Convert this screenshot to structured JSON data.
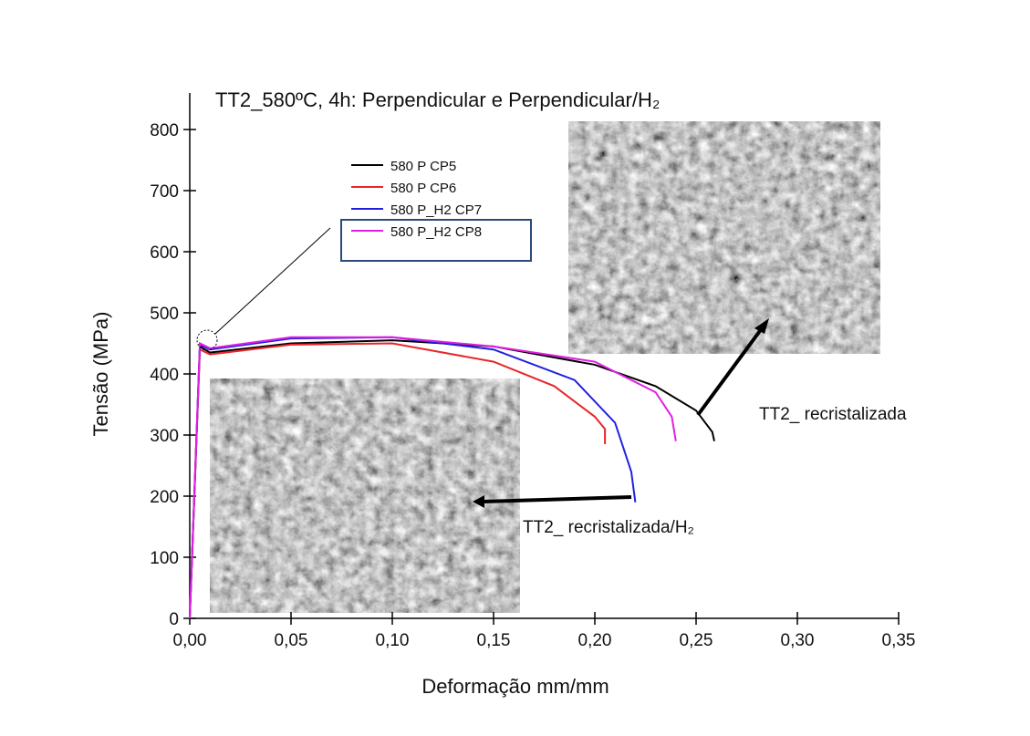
{
  "chart_data": {
    "type": "line",
    "title": "TT2_580ºC, 4h: Perpendicular e Perpendicular/H₂",
    "x_label": "Deformação mm/mm",
    "y_label": "Tensão (MPa)",
    "xlim": [
      0,
      0.35
    ],
    "xticks": [
      {
        "value": 0,
        "label": "0,00"
      },
      {
        "value": 0.05,
        "label": "0,05"
      },
      {
        "value": 0.1,
        "label": "0,10"
      },
      {
        "value": 0.15,
        "label": "0,15"
      },
      {
        "value": 0.2,
        "label": "0,20"
      },
      {
        "value": 0.25,
        "label": "0,25"
      },
      {
        "value": 0.3,
        "label": "0,30"
      },
      {
        "value": 0.35,
        "label": "0,35"
      }
    ],
    "ylim": [
      0,
      800
    ],
    "yticks": [
      0,
      100,
      200,
      300,
      400,
      500,
      600,
      700,
      800
    ],
    "series": [
      {
        "name": "580 P CP5",
        "color": "#000000",
        "x": [
          0,
          0.005,
          0.01,
          0.05,
          0.1,
          0.15,
          0.2,
          0.23,
          0.25,
          0.258,
          0.259
        ],
        "values": [
          0,
          445,
          435,
          450,
          455,
          445,
          415,
          380,
          340,
          305,
          290
        ]
      },
      {
        "name": "580 P CP6",
        "color": "#e8262a",
        "x": [
          0,
          0.005,
          0.01,
          0.05,
          0.1,
          0.15,
          0.18,
          0.2,
          0.205,
          0.205
        ],
        "values": [
          0,
          440,
          432,
          448,
          450,
          420,
          380,
          330,
          310,
          285
        ]
      },
      {
        "name": "580 P_H2 CP7",
        "color": "#2020e0",
        "x": [
          0,
          0.005,
          0.01,
          0.05,
          0.1,
          0.15,
          0.19,
          0.21,
          0.218,
          0.22
        ],
        "values": [
          0,
          448,
          440,
          458,
          460,
          440,
          390,
          320,
          240,
          190
        ]
      },
      {
        "name": "580 P_H2 CP8",
        "color": "#e020e0",
        "x": [
          0,
          0.005,
          0.01,
          0.05,
          0.1,
          0.15,
          0.2,
          0.23,
          0.238,
          0.24
        ],
        "values": [
          0,
          450,
          442,
          460,
          460,
          445,
          420,
          370,
          330,
          290
        ]
      }
    ],
    "annotations": [
      "TT2_ recristalizada",
      "TT2_ recristalizada/H₂"
    ]
  }
}
